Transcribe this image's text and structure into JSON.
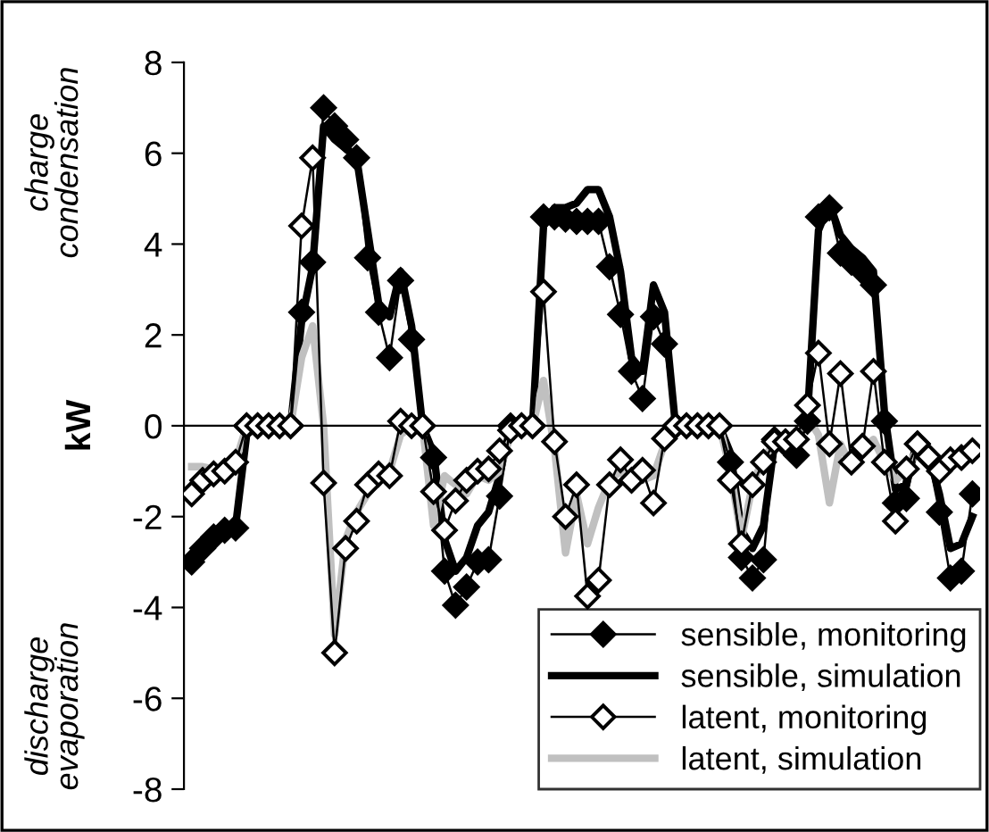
{
  "chart_data": {
    "type": "line",
    "ylabel": "kW",
    "annotations": [
      "charge\ncondensation",
      "discharge\nevaporation"
    ],
    "categories": [
      null,
      null,
      null,
      null,
      null,
      null,
      null,
      null,
      null,
      null,
      null,
      null,
      null,
      null,
      null,
      null,
      null,
      null,
      null,
      null,
      null,
      null,
      null,
      null,
      null,
      null,
      null,
      null,
      null,
      null,
      null,
      null,
      null,
      null,
      null,
      null,
      null,
      null,
      null,
      null,
      null,
      null,
      null,
      null,
      null,
      null,
      null,
      null,
      null,
      null,
      null,
      null,
      null,
      null,
      null,
      null,
      null,
      null,
      null,
      null,
      null,
      null,
      null,
      null,
      null,
      null,
      null,
      null,
      null,
      null,
      null,
      null
    ],
    "ylim": [
      -8,
      8
    ],
    "yticks": [
      -8,
      -6,
      -4,
      -2,
      0,
      2,
      4,
      6,
      8
    ],
    "legend": "bottom right",
    "series": [
      {
        "name": "sensible, monitoring",
        "color": "#000000",
        "marker": "diamond",
        "values": [
          -3.0,
          -2.7,
          -2.45,
          -2.3,
          -2.25,
          0,
          0,
          0,
          0,
          0,
          2.5,
          3.6,
          7.0,
          6.6,
          6.3,
          5.9,
          3.7,
          2.5,
          1.5,
          3.2,
          1.9,
          0,
          -0.7,
          -3.2,
          -3.95,
          -3.55,
          -3.0,
          -2.95,
          -1.55,
          0,
          0,
          0,
          4.6,
          4.6,
          4.55,
          4.5,
          4.5,
          4.5,
          3.5,
          2.45,
          1.2,
          0.6,
          2.4,
          1.8,
          0,
          0,
          0,
          0,
          0,
          -0.8,
          -2.9,
          -3.35,
          -2.95,
          -0.3,
          -0.4,
          -0.65,
          0.1,
          4.6,
          4.8,
          3.8,
          3.6,
          3.4,
          3.1,
          0.1,
          -1.7,
          -1.6,
          -0.4,
          -0.7,
          -1.9,
          -3.35,
          -3.2,
          -1.5
        ]
      },
      {
        "name": "sensible, simulation",
        "color": "#000000",
        "marker": "none",
        "values": [
          -2.9,
          -2.6,
          -2.4,
          -2.3,
          -2.2,
          -0.2,
          0,
          0,
          0,
          0,
          2.3,
          3.5,
          6.6,
          6.3,
          6.1,
          5.9,
          4.3,
          2.7,
          2.4,
          3.4,
          2.2,
          0,
          -0.6,
          -2.5,
          -3.2,
          -2.9,
          -2.2,
          -1.9,
          -1.1,
          0,
          0,
          0,
          4.4,
          4.8,
          4.8,
          4.9,
          5.2,
          5.2,
          4.6,
          3.4,
          1.5,
          1.2,
          3.1,
          2.5,
          0,
          0,
          0,
          0,
          0,
          -0.6,
          -2.3,
          -2.7,
          -2.2,
          -0.4,
          -0.3,
          -0.4,
          0.2,
          4.3,
          4.9,
          4.2,
          3.9,
          3.7,
          3.4,
          0.3,
          -1.4,
          -1.3,
          -0.3,
          -0.6,
          -1.5,
          -2.7,
          -2.6,
          -2.0
        ]
      },
      {
        "name": "latent, monitoring",
        "color": "#000000",
        "marker": "diamond",
        "values": [
          -1.5,
          -1.2,
          -1.06,
          -1.0,
          -0.8,
          0,
          0,
          0,
          0,
          0,
          4.4,
          5.9,
          -1.26,
          -5.0,
          -2.7,
          -2.1,
          -1.3,
          -1.06,
          -1.1,
          0.1,
          0,
          0,
          -1.45,
          -2.3,
          -1.65,
          -1.2,
          -1.0,
          -0.95,
          -0.55,
          -0.1,
          0,
          0,
          2.95,
          -0.35,
          -2.0,
          -1.3,
          -3.75,
          -3.4,
          -1.3,
          -0.75,
          -1.2,
          -0.98,
          -1.7,
          -0.28,
          0,
          0,
          0,
          0,
          0,
          -1.2,
          -2.6,
          -1.3,
          -0.8,
          -0.35,
          -0.35,
          -0.3,
          0.45,
          1.6,
          -0.4,
          1.15,
          -0.8,
          -0.45,
          1.2,
          -0.8,
          -2.1,
          -0.95,
          -0.4,
          -0.68,
          -1.0,
          -0.75,
          -0.7,
          -0.55
        ]
      },
      {
        "name": "latent, simulation",
        "color": "#c0c0c0",
        "marker": "none",
        "values": [
          -0.9,
          -0.9,
          -0.95,
          -0.9,
          -0.8,
          0,
          0,
          0,
          0,
          0,
          1.5,
          2.2,
          0,
          -4.6,
          -2.5,
          -1.9,
          -1.5,
          -1.2,
          -1.0,
          -0.2,
          0,
          0,
          -2.2,
          -1.1,
          -1.3,
          -1.5,
          -1.1,
          -1.2,
          -1.0,
          -0.2,
          0,
          0,
          1.0,
          -0.5,
          -2.8,
          -1.5,
          -2.6,
          -1.8,
          -1.2,
          -1.0,
          -1.3,
          -1.2,
          -1.1,
          -0.4,
          0,
          0,
          0,
          0,
          0,
          -1.0,
          -2.5,
          -1.3,
          -0.7,
          -0.4,
          -0.4,
          -0.3,
          0.2,
          -0.2,
          -1.7,
          -0.4,
          -0.9,
          -0.5,
          -0.3,
          -0.8,
          -1.2,
          -1.0,
          -0.5,
          -0.8,
          -1.1,
          -0.9,
          -0.8,
          -0.7
        ]
      }
    ]
  }
}
